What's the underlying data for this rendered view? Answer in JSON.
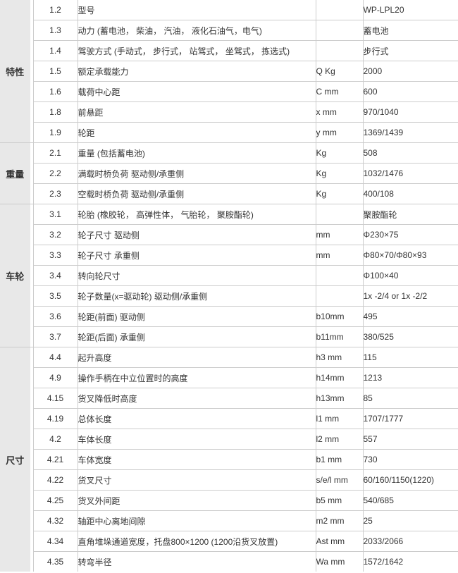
{
  "colors": {
    "category_background": "#e8e8e8",
    "grid_border": "#cccccc",
    "text": "#333333"
  },
  "table": {
    "model_label": "型号",
    "model_value": "WP-LPL20",
    "groups": [
      {
        "category": "特性",
        "rows": [
          {
            "no": "1.2",
            "desc": "型号",
            "unit": "",
            "value": "WP-LPL20"
          },
          {
            "no": "1.3",
            "desc": "动力 (蓄电池， 柴油， 汽油， 液化石油气，电气)",
            "unit": "",
            "value": "蓄电池"
          },
          {
            "no": "1.4",
            "desc": "驾驶方式 (手动式， 步行式， 站驾式， 坐驾式， 拣选式)",
            "unit": "",
            "value": "步行式"
          },
          {
            "no": "1.5",
            "desc": "额定承载能力",
            "unit": "Q Kg",
            "value": "2000"
          },
          {
            "no": "1.6",
            "desc": "载荷中心距",
            "unit": "C mm",
            "value": "600"
          },
          {
            "no": "1.8",
            "desc": "前悬距",
            "unit": "x mm",
            "value": "970/1040"
          },
          {
            "no": "1.9",
            "desc": "轮距",
            "unit": "y mm",
            "value": "1369/1439"
          }
        ]
      },
      {
        "category": "重量",
        "rows": [
          {
            "no": "2.1",
            "desc": "重量 (包括蓄电池)",
            "unit": "Kg",
            "value": "508"
          },
          {
            "no": "2.2",
            "desc": "满载时桥负荷 驱动侧/承重侧",
            "unit": "Kg",
            "value": "1032/1476"
          },
          {
            "no": "2.3",
            "desc": "空载时桥负荷 驱动侧/承重侧",
            "unit": "Kg",
            "value": "400/108"
          }
        ]
      },
      {
        "category": "车轮",
        "rows": [
          {
            "no": "3.1",
            "desc": "轮胎 (橡胶轮， 高弹性体， 气胎轮， 聚胺酯轮)",
            "unit": "",
            "value": "聚胺酯轮"
          },
          {
            "no": "3.2",
            "desc": "轮子尺寸 驱动侧",
            "unit": "mm",
            "value": "Φ230×75"
          },
          {
            "no": "3.3",
            "desc": "轮子尺寸 承重侧",
            "unit": "mm",
            "value": "Φ80×70/Φ80×93"
          },
          {
            "no": "3.4",
            "desc": "转向轮尺寸",
            "unit": "",
            "value": "Φ100×40"
          },
          {
            "no": "3.5",
            "desc": "轮子数量(x=驱动轮) 驱动侧/承重侧",
            "unit": "",
            "value": "1x -2/4 or 1x -2/2"
          },
          {
            "no": "3.6",
            "desc": "轮距(前面) 驱动侧",
            "unit": "b10mm",
            "value": "495"
          },
          {
            "no": "3.7",
            "desc": "轮距(后面) 承重侧",
            "unit": "b11mm",
            "value": "380/525"
          }
        ]
      },
      {
        "category": "尺寸",
        "rows": [
          {
            "no": "4.4",
            "desc": "起升高度",
            "unit": "h3 mm",
            "value": "115"
          },
          {
            "no": "4.9",
            "desc": "操作手柄在中立位置时的高度",
            "unit": "h14mm",
            "value": "1213"
          },
          {
            "no": "4.15",
            "desc": "货叉降低时高度",
            "unit": "h13mm",
            "value": "85"
          },
          {
            "no": "4.19",
            "desc": "总体长度",
            "unit": "l1 mm",
            "value": "1707/1777"
          },
          {
            "no": "4.2",
            "desc": "车体长度",
            "unit": "l2 mm",
            "value": "557"
          },
          {
            "no": "4.21",
            "desc": "车体宽度",
            "unit": "b1 mm",
            "value": "730"
          },
          {
            "no": "4.22",
            "desc": "货叉尺寸",
            "unit": "s/e/l mm",
            "value": "60/160/1150(1220)"
          },
          {
            "no": "4.25",
            "desc": "货叉外间距",
            "unit": "b5 mm",
            "value": "540/685"
          },
          {
            "no": "4.32",
            "desc": "轴距中心离地间隙",
            "unit": "m2 mm",
            "value": "25"
          },
          {
            "no": "4.34",
            "desc": "直角堆垛通道宽度，托盘800×1200 (1200沿货叉放置)",
            "unit": "Ast mm",
            "value": "2033/2066"
          },
          {
            "no": "4.35",
            "desc": "转弯半径",
            "unit": "Wa mm",
            "value": "1572/1642"
          }
        ]
      }
    ]
  }
}
